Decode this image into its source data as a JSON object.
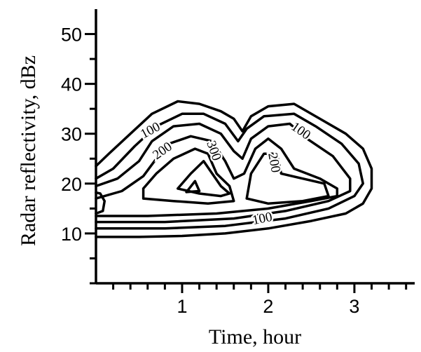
{
  "chart_data": {
    "type": "contour",
    "x_label": "Time, hour",
    "y_label": "Radar reflectivity, dBz",
    "xlim": [
      0,
      3.7
    ],
    "xticks": [
      1,
      2,
      3
    ],
    "xminor_ticks": [
      0.2,
      0.4,
      0.6,
      0.8,
      1.2,
      1.4,
      1.6,
      1.8,
      2.2,
      2.4,
      2.6,
      2.8,
      3.2,
      3.4,
      3.6
    ],
    "ylim": [
      0,
      55
    ],
    "yticks": [
      10,
      20,
      30,
      40,
      50
    ],
    "yminor_ticks": [
      0,
      5,
      15,
      25,
      35,
      45
    ],
    "color": "#000000",
    "contours": [
      {
        "x": [
          0,
          0.15,
          0.4,
          0.65,
          0.95,
          1.2,
          1.45,
          1.6,
          1.7,
          1.8,
          2.0,
          2.3,
          2.6,
          2.9,
          3.1,
          3.2,
          3.2,
          3.1,
          2.9,
          2.5,
          2.0,
          1.5,
          1.0,
          0.5,
          0
        ],
        "y": [
          23.5,
          26,
          30,
          34,
          36.5,
          36,
          34.5,
          33,
          30.5,
          33.5,
          35.5,
          36,
          33,
          30,
          27,
          23,
          19,
          16,
          14,
          12.5,
          11,
          10,
          9.5,
          9.3,
          9.3
        ]
      },
      {
        "x": [
          0,
          0.2,
          0.45,
          0.7,
          1.0,
          1.25,
          1.5,
          1.65,
          1.75,
          1.95,
          2.3,
          2.55,
          2.85,
          3.05,
          3.1,
          3.0,
          2.7,
          2.2,
          1.5,
          0.8,
          0
        ],
        "y": [
          21,
          23,
          27.5,
          31.5,
          34,
          34,
          32,
          28.5,
          31,
          33.5,
          34,
          31.5,
          28,
          24,
          20,
          17.5,
          15,
          13,
          11.5,
          11,
          11
        ]
      },
      {
        "x": [
          0,
          0.25,
          0.5,
          0.65,
          0.9,
          1.2,
          1.45,
          1.6,
          1.7,
          1.8,
          2.0,
          2.25,
          2.45,
          2.75,
          2.95,
          2.95,
          2.7,
          2.2,
          1.6,
          0.8,
          0
        ],
        "y": [
          19.5,
          21,
          24.5,
          28.5,
          31.5,
          32,
          30,
          26.5,
          25,
          29,
          31.5,
          32,
          29,
          25.5,
          21,
          18.5,
          16.5,
          14.5,
          13,
          12.3,
          12.3
        ]
      },
      {
        "x": [
          0,
          0.3,
          0.55,
          0.7,
          0.85,
          1.1,
          1.35,
          1.5,
          1.6,
          1.72,
          1.85,
          2.0,
          2.15,
          2.3,
          2.6,
          2.8,
          2.8,
          2.5,
          2.0,
          1.4,
          0.6,
          0
        ],
        "y": [
          17,
          18.5,
          21.5,
          25,
          28,
          29.5,
          28.5,
          24.5,
          21,
          22,
          27,
          29,
          27,
          23,
          21,
          19,
          17.5,
          16.5,
          15,
          14,
          13.5,
          13.5
        ]
      },
      {
        "x": [
          0.55,
          0.7,
          0.9,
          1.15,
          1.3,
          1.4,
          1.55,
          1.6,
          1.3,
          0.9,
          0.55,
          0.55
        ],
        "y": [
          19,
          22,
          25,
          27,
          26,
          22,
          19.5,
          16.5,
          16,
          16.5,
          17,
          19
        ]
      },
      {
        "x": [
          1.75,
          1.8,
          1.95,
          2.1,
          2.15,
          2.4,
          2.65,
          2.7,
          2.4,
          2.0,
          1.75
        ],
        "y": [
          17,
          22,
          26,
          26,
          22,
          21,
          20,
          17.5,
          16.5,
          16,
          17
        ]
      },
      {
        "x": [
          0.95,
          1.1,
          1.25,
          1.35,
          1.45,
          1.55,
          1.45,
          1.2,
          0.95
        ],
        "y": [
          19,
          22,
          24.5,
          22,
          19.5,
          18,
          17.5,
          18,
          19
        ]
      },
      {
        "x": [
          1.05,
          1.15,
          1.2,
          1.05
        ],
        "y": [
          18.3,
          20.5,
          18.5,
          18.3
        ]
      },
      {
        "x": [
          0,
          0.08,
          0.1,
          0.05,
          0
        ],
        "y": [
          14,
          14.5,
          16.5,
          18,
          18.2
        ]
      }
    ],
    "contour_labels": [
      {
        "text": "100",
        "x": 0.63,
        "y": 30.7
      },
      {
        "text": "200",
        "x": 0.77,
        "y": 26.6
      },
      {
        "text": "300",
        "x": 1.37,
        "y": 26.6
      },
      {
        "text": "100",
        "x": 2.38,
        "y": 30.6
      },
      {
        "text": "200",
        "x": 2.07,
        "y": 24.2
      },
      {
        "text": "100",
        "x": 1.93,
        "y": 13
      }
    ]
  }
}
